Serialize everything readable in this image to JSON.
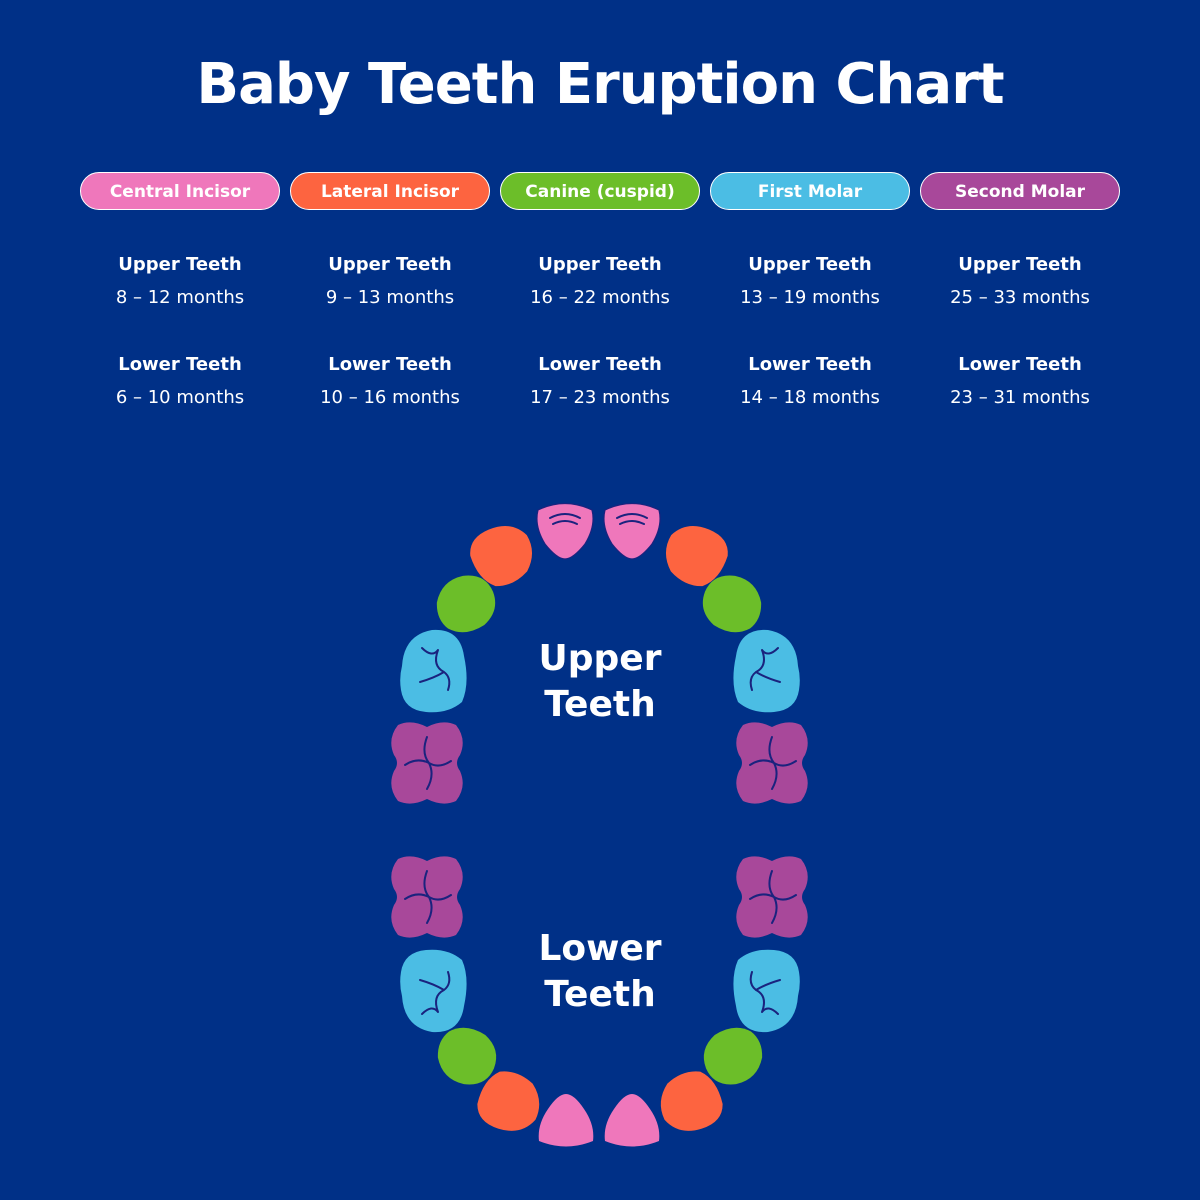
{
  "title": "Baby Teeth Eruption Chart",
  "colors": {
    "background": "#003087",
    "line": "#1a237e",
    "central_incisor": "#ef77bb",
    "lateral_incisor": "#fd6440",
    "canine": "#6cbe29",
    "first_molar": "#4bbde4",
    "second_molar": "#a8489a"
  },
  "tooth_types": [
    {
      "name": "Central Incisor",
      "color": "#ef77bb",
      "upper_label": "Upper Teeth",
      "upper_range": "8 – 12 months",
      "lower_label": "Lower Teeth",
      "lower_range": "6 – 10 months"
    },
    {
      "name": "Lateral Incisor",
      "color": "#fd6440",
      "upper_label": "Upper Teeth",
      "upper_range": "9 – 13 months",
      "lower_label": "Lower Teeth",
      "lower_range": "10 – 16 months"
    },
    {
      "name": "Canine (cuspid)",
      "color": "#6cbe29",
      "upper_label": "Upper Teeth",
      "upper_range": "16 – 22 months",
      "lower_label": "Lower Teeth",
      "lower_range": "17 – 23 months"
    },
    {
      "name": "First Molar",
      "color": "#4bbde4",
      "upper_label": "Upper Teeth",
      "upper_range": "13 – 19 months",
      "lower_label": "Lower Teeth",
      "lower_range": "14 – 18 months"
    },
    {
      "name": "Second Molar",
      "color": "#a8489a",
      "upper_label": "Upper Teeth",
      "upper_range": "25 – 33 months",
      "lower_label": "Lower Teeth",
      "lower_range": "23 – 31 months"
    }
  ],
  "arch": {
    "upper_line1": "Upper",
    "upper_line2": "Teeth",
    "lower_line1": "Lower",
    "lower_line2": "Teeth"
  }
}
